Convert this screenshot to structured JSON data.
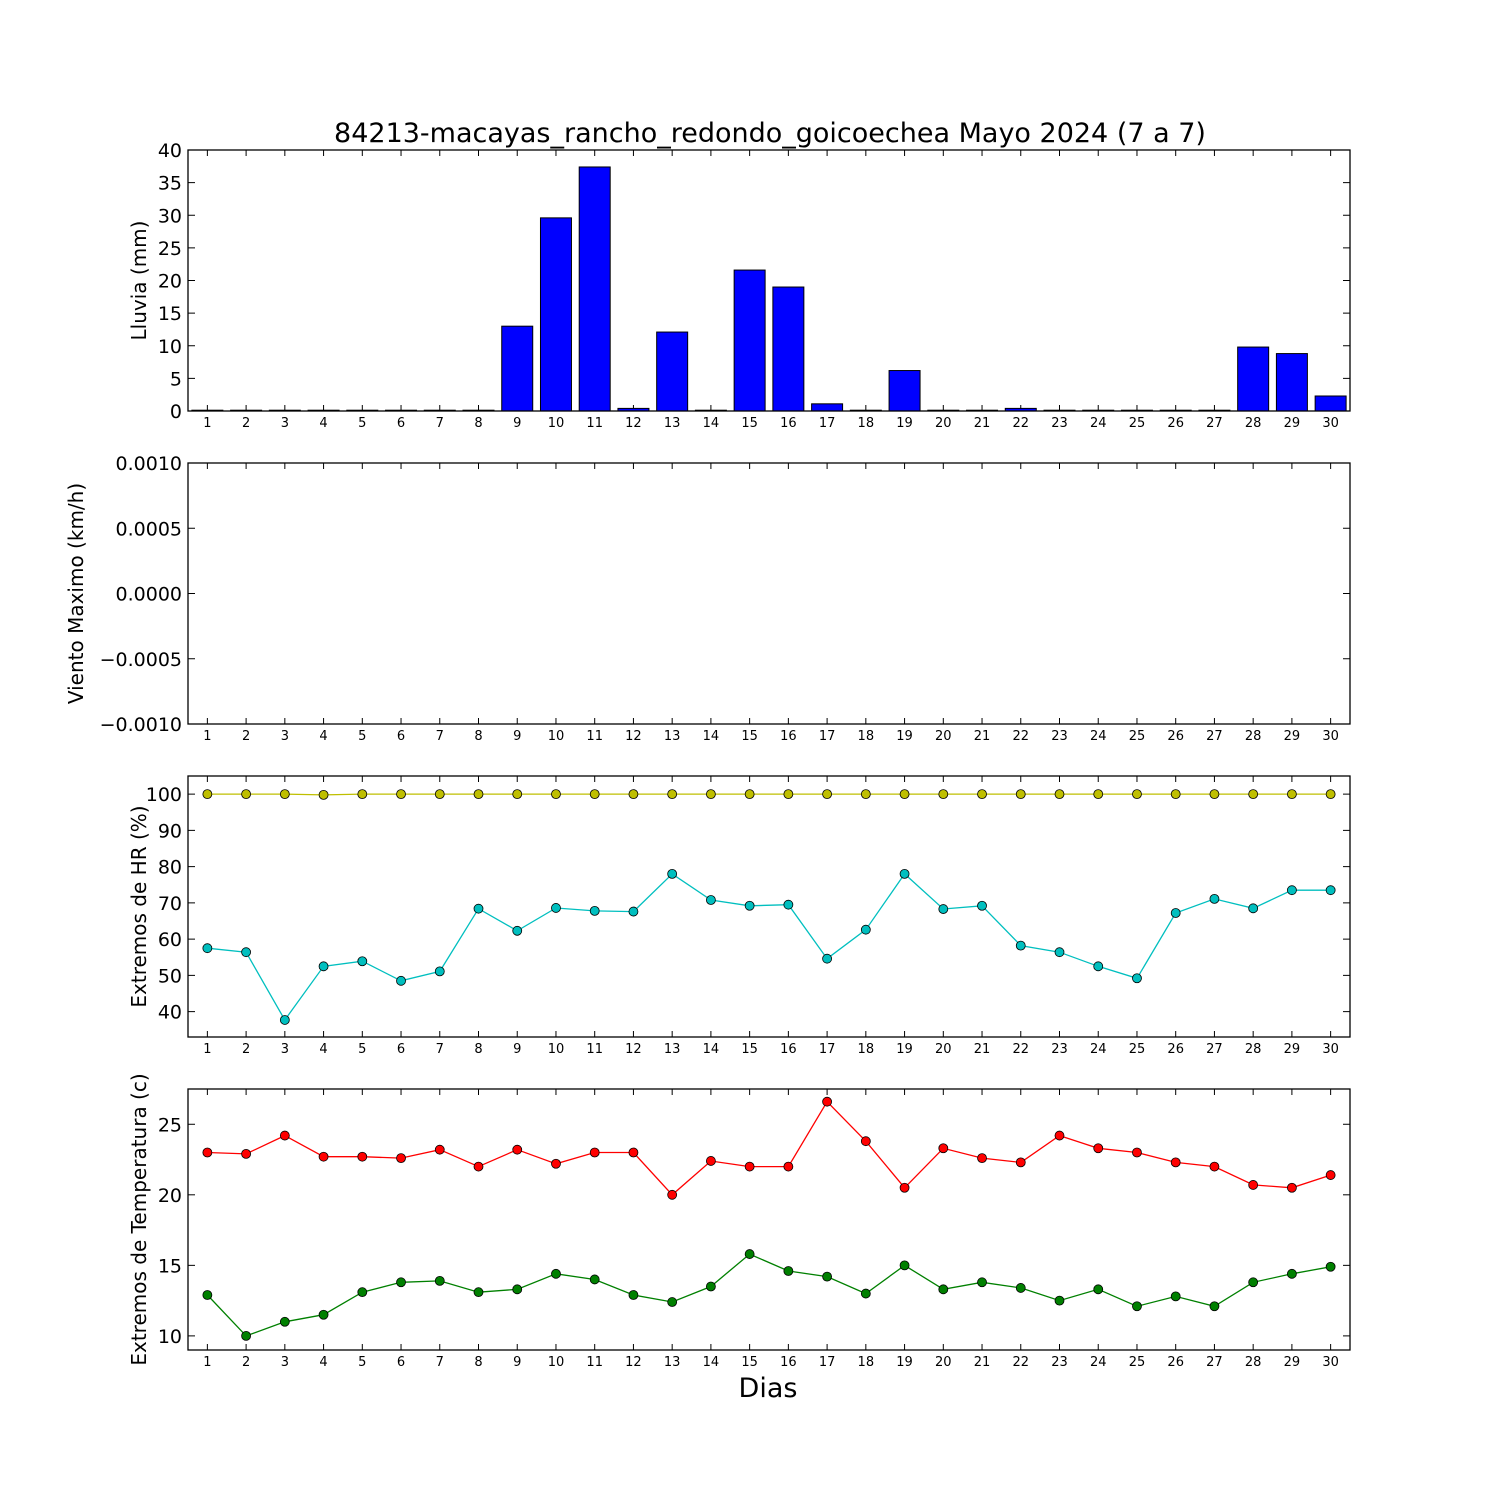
{
  "title": "84213-macayas_rancho_redondo_goicoechea Mayo 2024  (7 a 7)",
  "xlabel": "Dias",
  "chart_data": [
    {
      "type": "bar",
      "ylabel": "Lluvia (mm)",
      "ylim": [
        0,
        40
      ],
      "yticks": [
        0,
        5,
        10,
        15,
        20,
        25,
        30,
        35,
        40
      ],
      "ytick_labels": [
        "0",
        "5",
        "10",
        "15",
        "20",
        "25",
        "30",
        "35",
        "40"
      ],
      "categories": [
        "1",
        "2",
        "3",
        "4",
        "5",
        "6",
        "7",
        "8",
        "9",
        "10",
        "11",
        "12",
        "13",
        "14",
        "15",
        "16",
        "17",
        "18",
        "19",
        "20",
        "21",
        "22",
        "23",
        "24",
        "25",
        "26",
        "27",
        "28",
        "29",
        "30"
      ],
      "series": [
        {
          "color": "#0000ff",
          "values": [
            0,
            0,
            0,
            0,
            0,
            0,
            0,
            0.1,
            13.0,
            29.6,
            37.4,
            0.4,
            12.1,
            0,
            21.6,
            19.0,
            1.1,
            0,
            6.2,
            0.1,
            0,
            0.4,
            0,
            0,
            0,
            0.1,
            0.1,
            9.8,
            8.8,
            2.3
          ]
        }
      ]
    },
    {
      "type": "line",
      "ylabel": "Viento Maximo (km/h)",
      "ylim": [
        -0.001,
        0.001
      ],
      "yticks": [
        -0.001,
        -0.0005,
        0,
        0.0005,
        0.001
      ],
      "ytick_labels": [
        "−0.0010",
        "−0.0005",
        "0.0000",
        "0.0005",
        "0.0010"
      ],
      "categories": [
        "1",
        "2",
        "3",
        "4",
        "5",
        "6",
        "7",
        "8",
        "9",
        "10",
        "11",
        "12",
        "13",
        "14",
        "15",
        "16",
        "17",
        "18",
        "19",
        "20",
        "21",
        "22",
        "23",
        "24",
        "25",
        "26",
        "27",
        "28",
        "29",
        "30"
      ],
      "series": []
    },
    {
      "type": "line",
      "ylabel": "Extremos de HR (%)",
      "ylim": [
        33,
        105
      ],
      "yticks": [
        40,
        50,
        60,
        70,
        80,
        90,
        100
      ],
      "ytick_labels": [
        "40",
        "50",
        "60",
        "70",
        "80",
        "90",
        "100"
      ],
      "categories": [
        "1",
        "2",
        "3",
        "4",
        "5",
        "6",
        "7",
        "8",
        "9",
        "10",
        "11",
        "12",
        "13",
        "14",
        "15",
        "16",
        "17",
        "18",
        "19",
        "20",
        "21",
        "22",
        "23",
        "24",
        "25",
        "26",
        "27",
        "28",
        "29",
        "30"
      ],
      "series": [
        {
          "color": "#bfbf00",
          "values": [
            100,
            100,
            100,
            99.8,
            100,
            100,
            100,
            100,
            100,
            100,
            100,
            100,
            100,
            100,
            100,
            100,
            100,
            100,
            100,
            100,
            100,
            100,
            100,
            100,
            100,
            100,
            100,
            100,
            100,
            100
          ]
        },
        {
          "color": "#00bfbf",
          "values": [
            57.5,
            56.4,
            37.7,
            52.5,
            53.9,
            48.5,
            51.1,
            68.4,
            62.3,
            68.6,
            67.8,
            67.6,
            78.0,
            70.8,
            69.2,
            69.5,
            54.6,
            62.6,
            78.0,
            68.3,
            69.2,
            58.2,
            56.4,
            52.5,
            49.2,
            67.2,
            71.1,
            68.5,
            73.5,
            73.5
          ]
        }
      ]
    },
    {
      "type": "line",
      "ylabel": "Extremos de Temperatura (c)",
      "ylim": [
        9,
        27.5
      ],
      "yticks": [
        10,
        15,
        20,
        25
      ],
      "ytick_labels": [
        "10",
        "15",
        "20",
        "25"
      ],
      "categories": [
        "1",
        "2",
        "3",
        "4",
        "5",
        "6",
        "7",
        "8",
        "9",
        "10",
        "11",
        "12",
        "13",
        "14",
        "15",
        "16",
        "17",
        "18",
        "19",
        "20",
        "21",
        "22",
        "23",
        "24",
        "25",
        "26",
        "27",
        "28",
        "29",
        "30"
      ],
      "series": [
        {
          "color": "#ff0000",
          "values": [
            23.0,
            22.9,
            24.2,
            22.7,
            22.7,
            22.6,
            23.2,
            22.0,
            23.2,
            22.2,
            23.0,
            23.0,
            20.0,
            22.4,
            22.0,
            22.0,
            26.6,
            23.8,
            20.5,
            23.3,
            22.6,
            22.3,
            24.2,
            23.3,
            23.0,
            22.3,
            22.0,
            20.7,
            20.5,
            21.4
          ]
        },
        {
          "color": "#008000",
          "values": [
            12.9,
            10.0,
            11.0,
            11.5,
            13.1,
            13.8,
            13.9,
            13.1,
            13.3,
            14.4,
            14.0,
            12.9,
            12.4,
            13.5,
            15.8,
            14.6,
            14.2,
            13.0,
            15.0,
            13.3,
            13.8,
            13.4,
            12.5,
            13.3,
            12.1,
            12.8,
            12.1,
            13.8,
            14.4,
            14.9
          ]
        }
      ]
    }
  ]
}
